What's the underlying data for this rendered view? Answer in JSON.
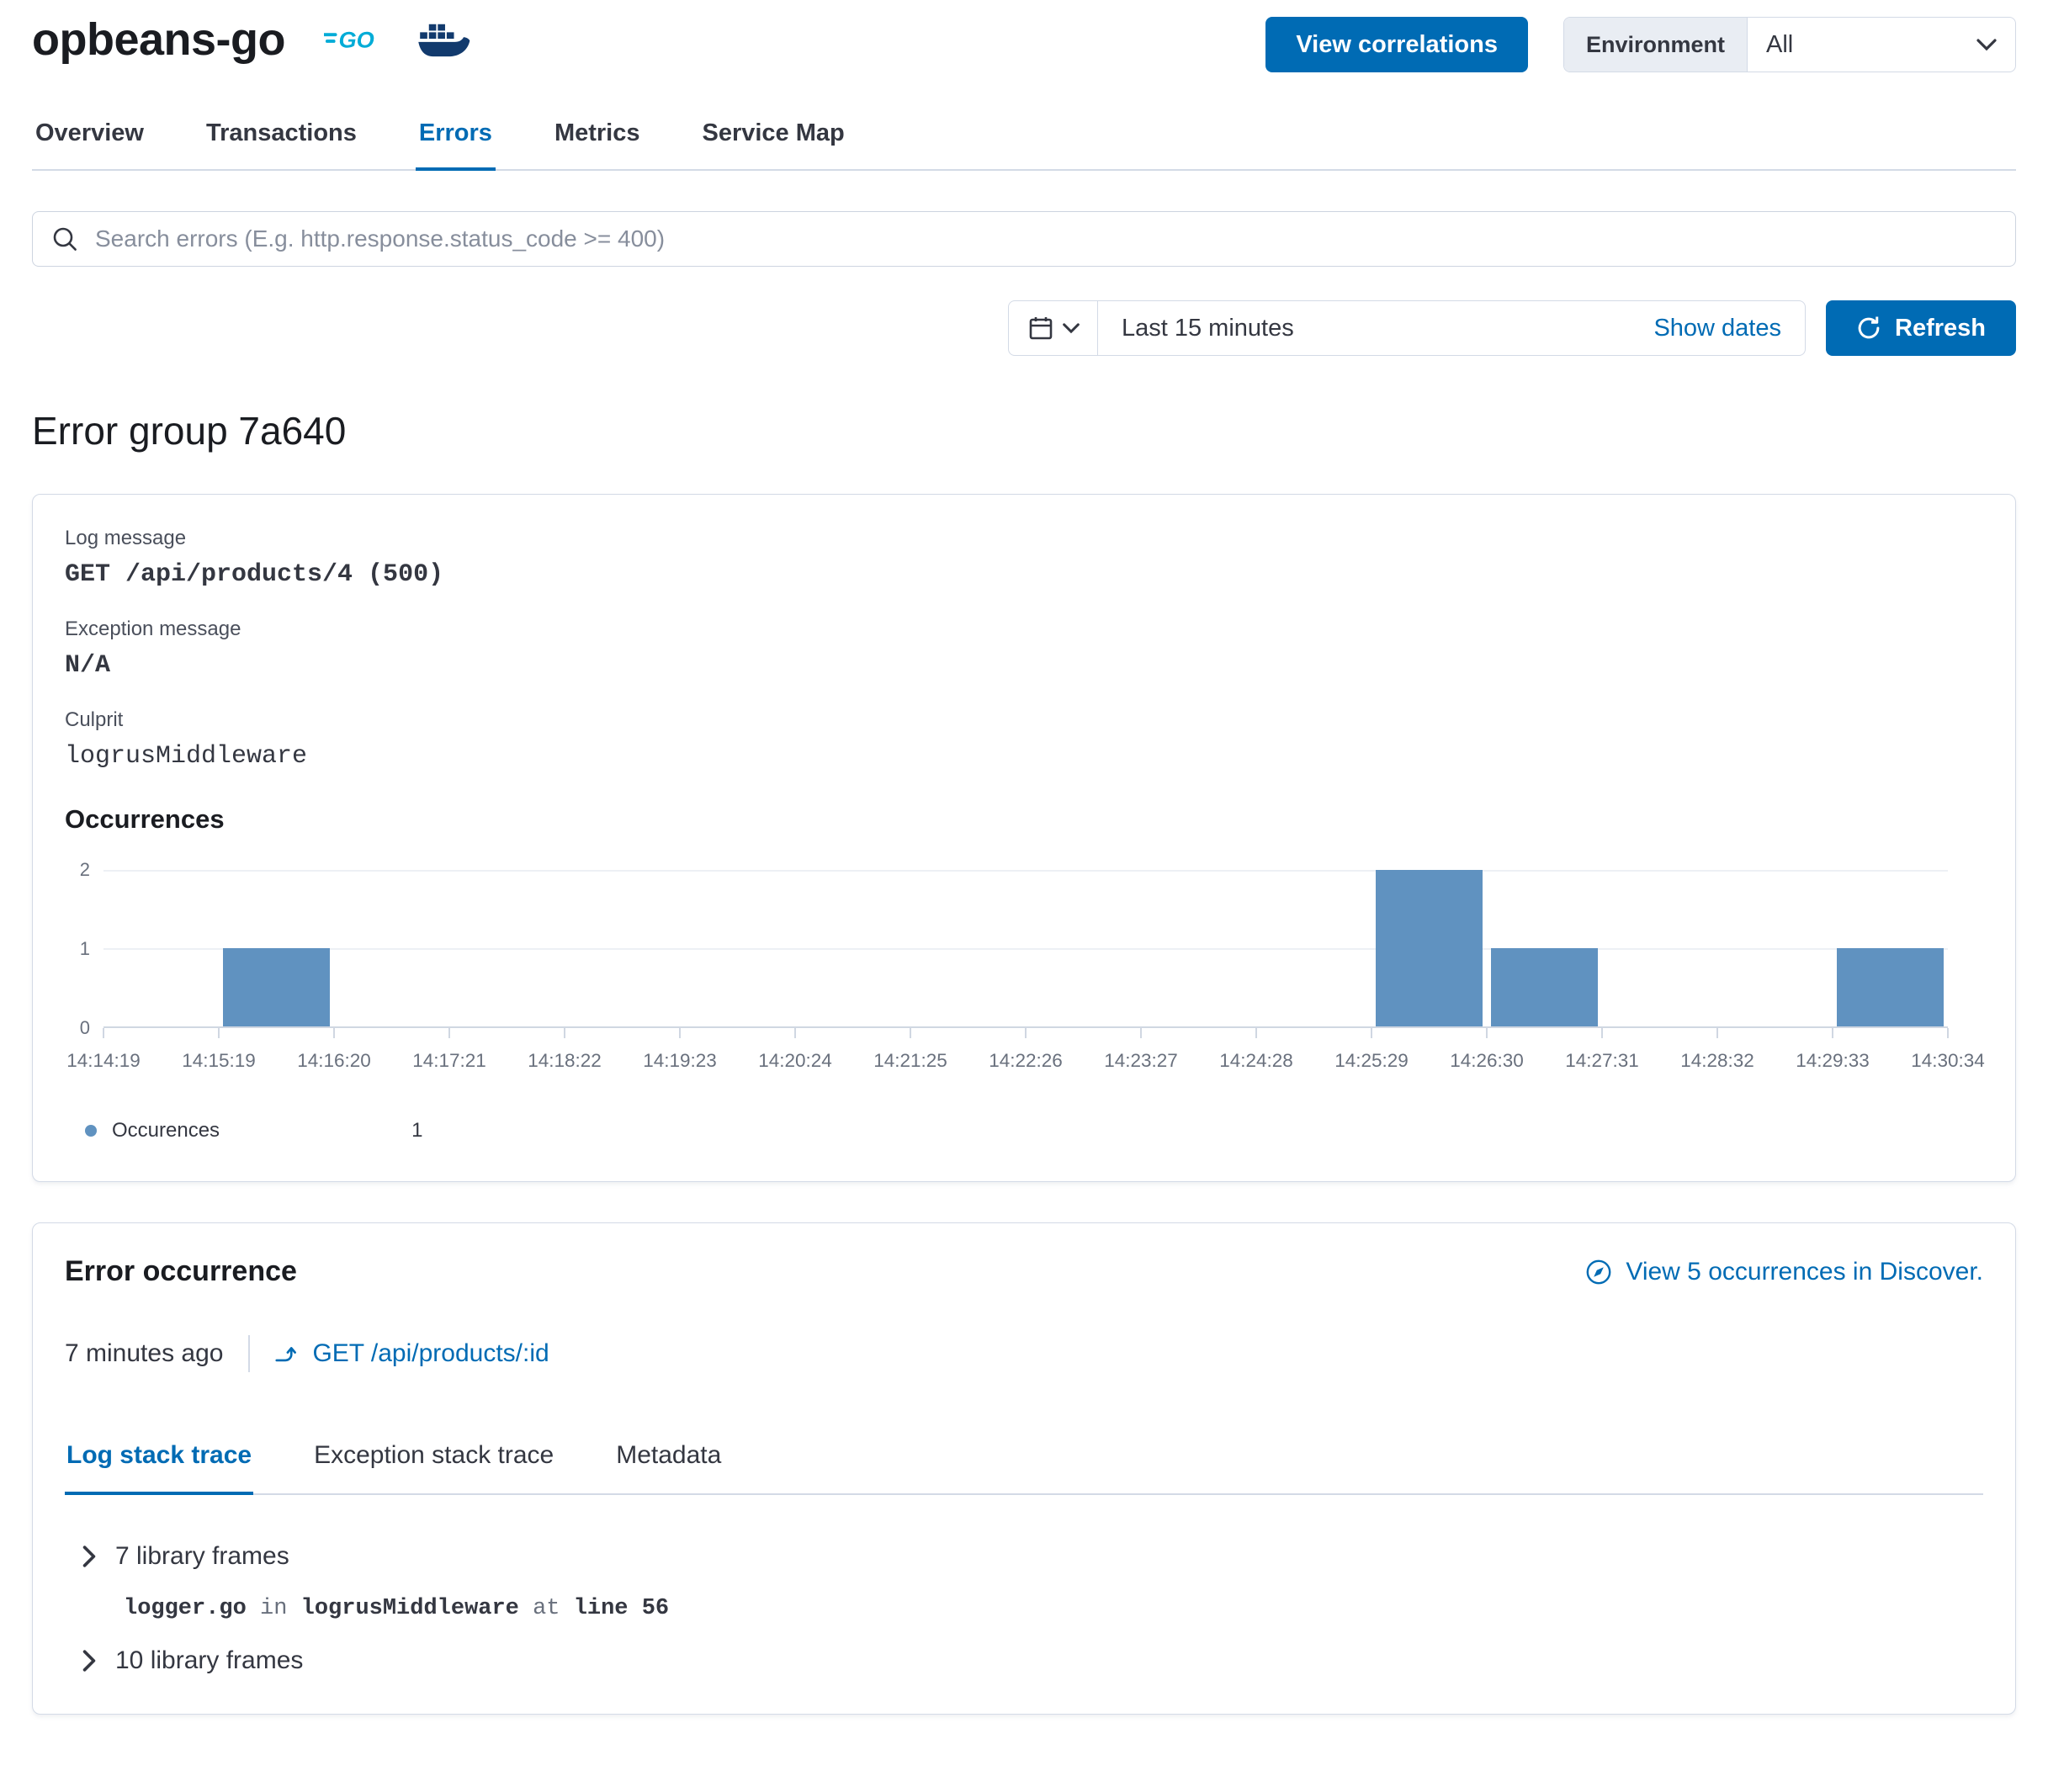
{
  "header": {
    "service_name": "opbeans-go",
    "view_correlations_label": "View correlations",
    "environment_label": "Environment",
    "environment_value": "All"
  },
  "nav_tabs": [
    {
      "label": "Overview",
      "active": false
    },
    {
      "label": "Transactions",
      "active": false
    },
    {
      "label": "Errors",
      "active": true
    },
    {
      "label": "Metrics",
      "active": false
    },
    {
      "label": "Service Map",
      "active": false
    }
  ],
  "search": {
    "placeholder": "Search errors (E.g. http.response.status_code >= 400)"
  },
  "time_picker": {
    "range_label": "Last 15 minutes",
    "show_dates_label": "Show dates",
    "refresh_label": "Refresh"
  },
  "page_title": "Error group 7a640",
  "error_group_card": {
    "log_message_label": "Log message",
    "log_message": "GET /api/products/4 (500)",
    "exception_message_label": "Exception message",
    "exception_message": "N/A",
    "culprit_label": "Culprit",
    "culprit": "logrusMiddleware",
    "occurrences_title": "Occurrences"
  },
  "chart_data": {
    "type": "bar",
    "title": "Occurrences",
    "xlabel": "",
    "ylabel": "",
    "ylim": [
      0,
      2
    ],
    "y_ticks": [
      0,
      1,
      2
    ],
    "grid": true,
    "bar_color": "#6092C0",
    "x_ticks": [
      "14:14:19",
      "14:15:19",
      "14:16:20",
      "14:17:21",
      "14:18:22",
      "14:19:23",
      "14:20:24",
      "14:21:25",
      "14:22:26",
      "14:23:27",
      "14:24:28",
      "14:25:29",
      "14:26:30",
      "14:27:31",
      "14:28:32",
      "14:29:33",
      "14:30:34"
    ],
    "buckets": [
      0,
      1,
      0,
      0,
      0,
      0,
      0,
      0,
      0,
      0,
      0,
      2,
      1,
      0,
      0,
      1
    ],
    "legend": {
      "position": "bottom",
      "label": "Occurences",
      "value": "1"
    }
  },
  "error_occurrence_card": {
    "title": "Error occurrence",
    "discover_link": "View 5 occurrences in Discover.",
    "timestamp": "7 minutes ago",
    "transaction_link": "GET /api/products/:id",
    "tabs": [
      {
        "label": "Log stack trace",
        "active": true
      },
      {
        "label": "Exception stack trace",
        "active": false
      },
      {
        "label": "Metadata",
        "active": false
      }
    ],
    "frames": {
      "group_top": "7 library frames",
      "frame_file": "logger.go",
      "frame_in": "in",
      "frame_fn": "logrusMiddleware",
      "frame_at": "at",
      "frame_line": "line 56",
      "group_bottom": "10 library frames"
    }
  }
}
